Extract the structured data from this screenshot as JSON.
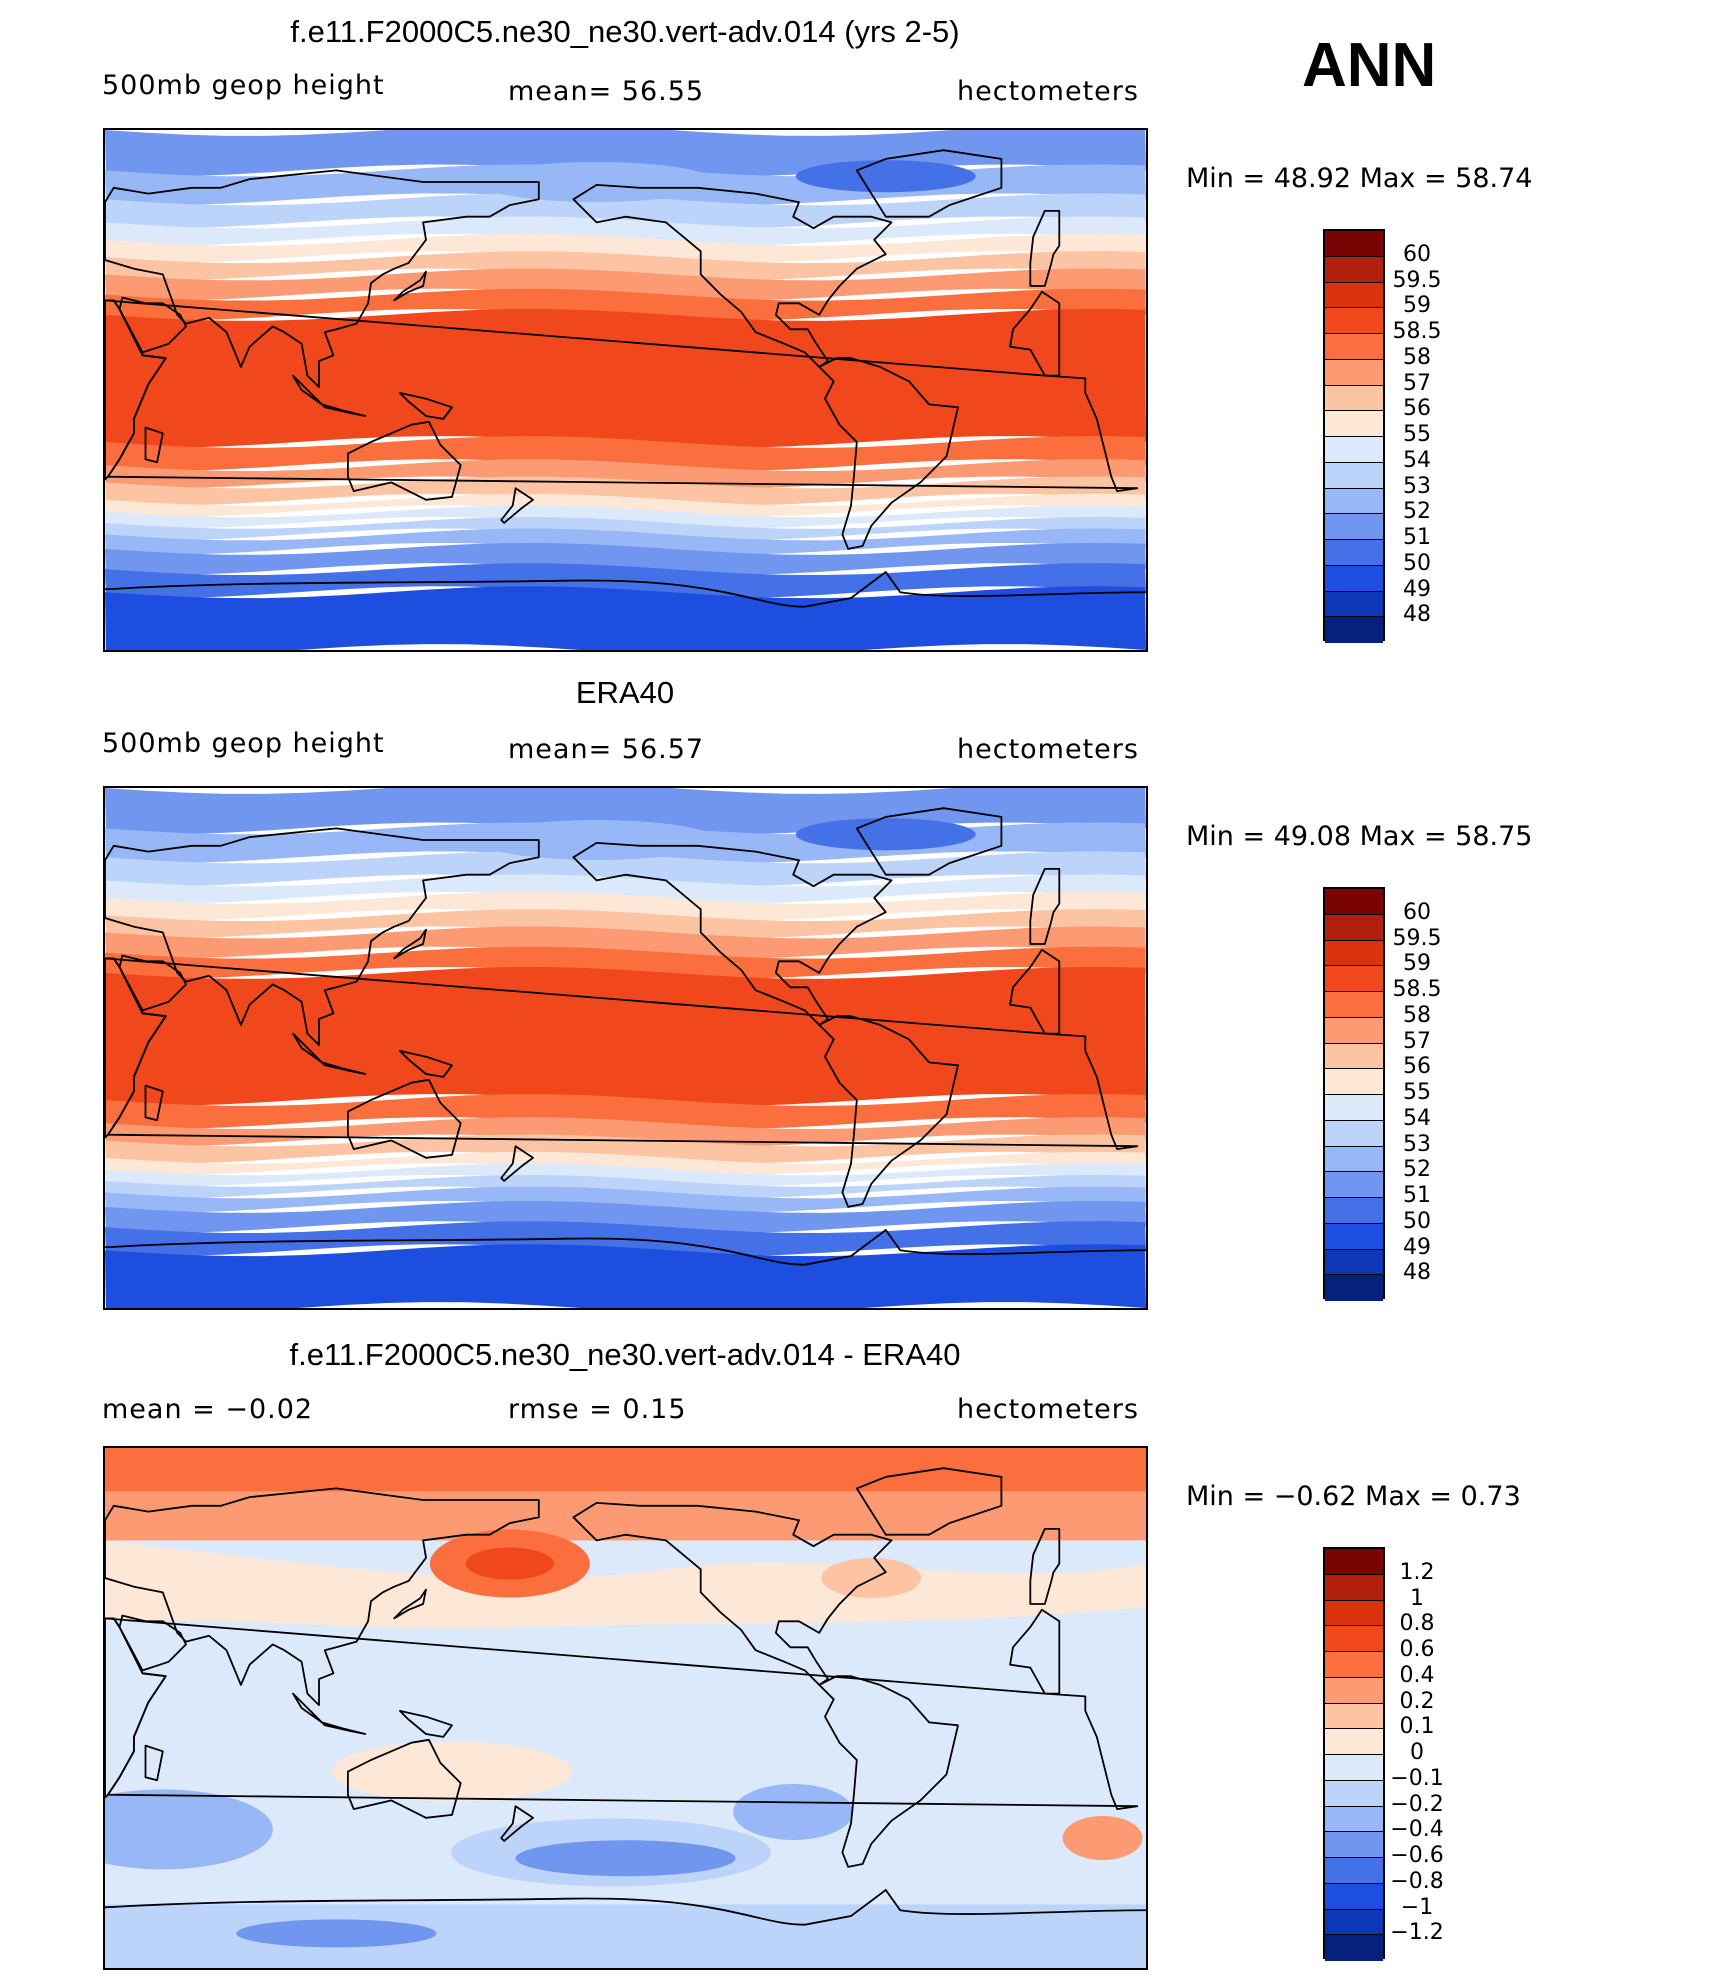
{
  "season": "ANN",
  "panels": [
    {
      "title": "f.e11.F2000C5.ne30_ne30.vert-adv.014 (yrs 2-5)",
      "left_label": "500mb geop height",
      "center_label": "mean=   56.55",
      "right_label": "hectometers",
      "minmax": "Min =   48.92  Max =   58.74",
      "colorbar_labels": [
        "60",
        "59.5",
        "59",
        "58.5",
        "58",
        "57",
        "56",
        "55",
        "54",
        "53",
        "52",
        "51",
        "50",
        "49",
        "48"
      ],
      "colorbar_colors": [
        "#7a0403",
        "#b1200d",
        "#d9320d",
        "#f0481c",
        "#fb6e3d",
        "#fc9a73",
        "#fdc4a4",
        "#fde8d8",
        "#dce9fb",
        "#bcd3fa",
        "#97b7f7",
        "#7096f0",
        "#4470e8",
        "#1e4ee0",
        "#0e36b8",
        "#06217c"
      ],
      "field": "height"
    },
    {
      "title": "ERA40",
      "left_label": "500mb geop height",
      "center_label": "mean=   56.57",
      "right_label": "hectometers",
      "minmax": "Min =   49.08  Max =   58.75",
      "colorbar_labels": [
        "60",
        "59.5",
        "59",
        "58.5",
        "58",
        "57",
        "56",
        "55",
        "54",
        "53",
        "52",
        "51",
        "50",
        "49",
        "48"
      ],
      "colorbar_colors": [
        "#7a0403",
        "#b1200d",
        "#d9320d",
        "#f0481c",
        "#fb6e3d",
        "#fc9a73",
        "#fdc4a4",
        "#fde8d8",
        "#dce9fb",
        "#bcd3fa",
        "#97b7f7",
        "#7096f0",
        "#4470e8",
        "#1e4ee0",
        "#0e36b8",
        "#06217c"
      ],
      "field": "height"
    },
    {
      "title": "f.e11.F2000C5.ne30_ne30.vert-adv.014 - ERA40",
      "left_label": "mean =   −0.02",
      "center_label": "rmse =    0.15",
      "right_label": "hectometers",
      "minmax": "Min =   −0.62  Max =    0.73",
      "colorbar_labels": [
        "1.2",
        "1",
        "0.8",
        "0.6",
        "0.4",
        "0.2",
        "0.1",
        "0",
        "−0.1",
        "−0.2",
        "−0.4",
        "−0.6",
        "−0.8",
        "−1",
        "−1.2"
      ],
      "colorbar_colors": [
        "#7a0403",
        "#b1200d",
        "#d9320d",
        "#f0481c",
        "#fb6e3d",
        "#fc9a73",
        "#fdc4a4",
        "#fde8d8",
        "#dce9fb",
        "#bcd3fa",
        "#97b7f7",
        "#7096f0",
        "#4470e8",
        "#1e4ee0",
        "#0e36b8",
        "#06217c"
      ],
      "field": "difference"
    }
  ]
}
